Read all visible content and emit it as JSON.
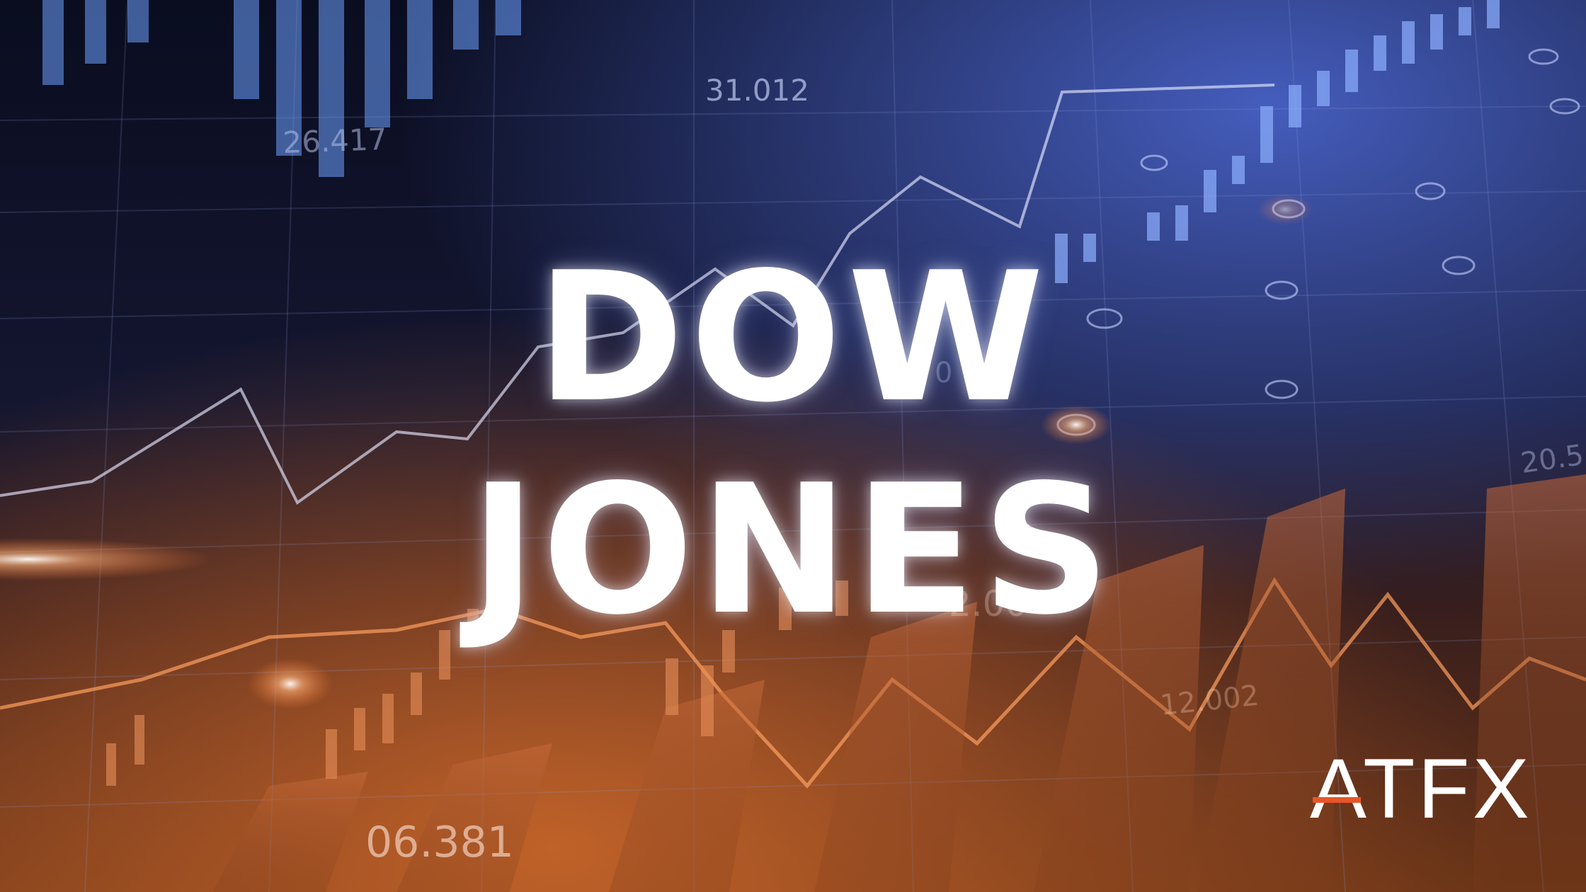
{
  "headline": {
    "line1": "DOW",
    "line2": "JONES"
  },
  "logo": {
    "text": "ATFX",
    "accent_color": "#e8552a"
  },
  "background_numbers": [
    "31.012",
    "26.417",
    "06.381",
    "12.002",
    "2.00",
    "20.5",
    "0"
  ],
  "colors": {
    "top": "#0b0f22",
    "blue_glow": "#4f6bd8",
    "orange_glow": "#c8622c",
    "text": "#ffffff"
  }
}
